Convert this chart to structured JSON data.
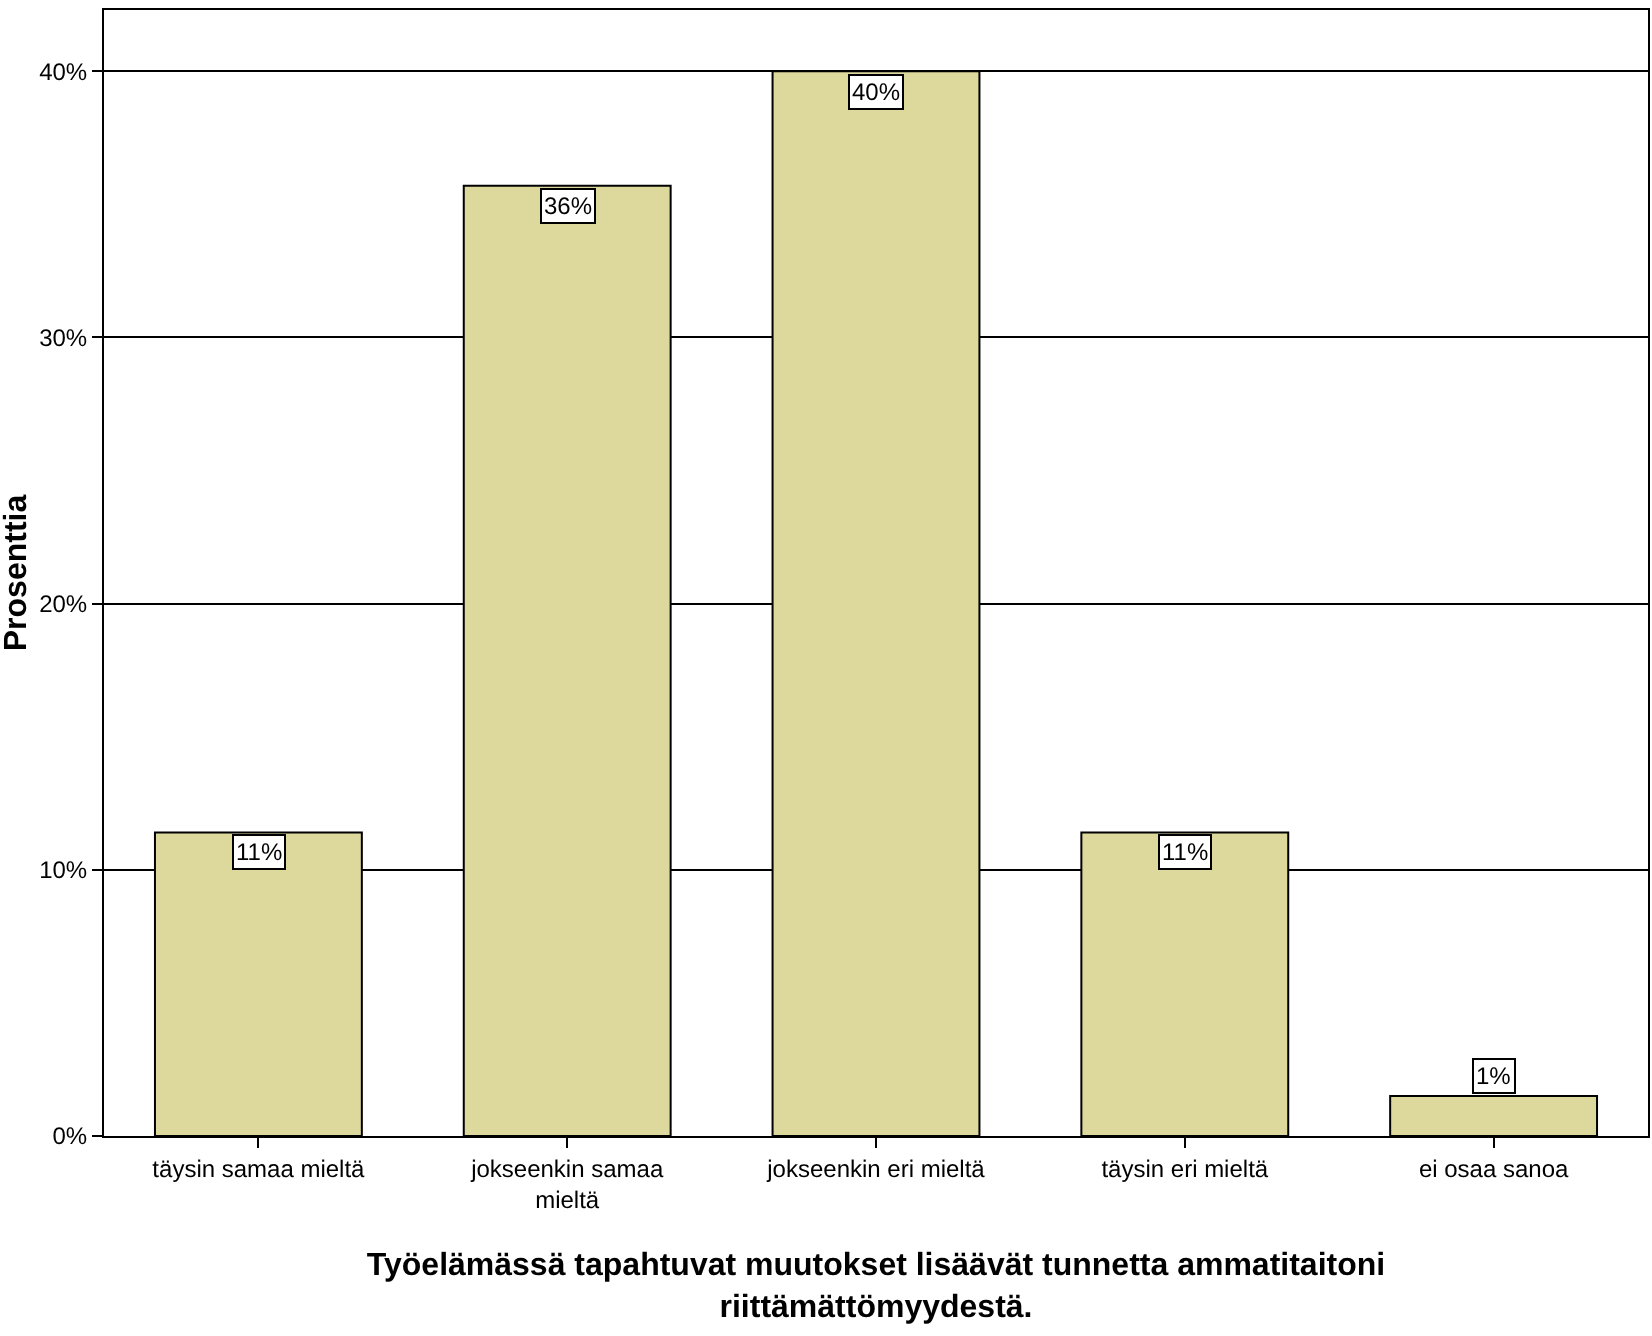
{
  "chart_data": {
    "type": "bar",
    "xlabel": "Työelämässä tapahtuvat muutokset lisäävät tunnetta ammatitaitoni riittämättömyydestä.",
    "ylabel": "Prosenttia",
    "categories": [
      "täysin samaa mieltä",
      "jokseenkin samaa mieltä",
      "jokseenkin eri mieltä",
      "täysin eri mieltä",
      "ei osaa sanoa"
    ],
    "values": [
      11.4,
      35.7,
      40.0,
      11.4,
      1.5
    ],
    "value_labels": [
      "11%",
      "36%",
      "40%",
      "11%",
      "1%"
    ],
    "color": "#ddd89c",
    "ylim": [
      0,
      42.3
    ],
    "yticks": [
      {
        "value": 0,
        "label": "0%"
      },
      {
        "value": 10,
        "label": "10%"
      },
      {
        "value": 20,
        "label": "20%"
      },
      {
        "value": 30,
        "label": "30%"
      },
      {
        "value": 40,
        "label": "40%"
      }
    ],
    "grid": "y"
  }
}
